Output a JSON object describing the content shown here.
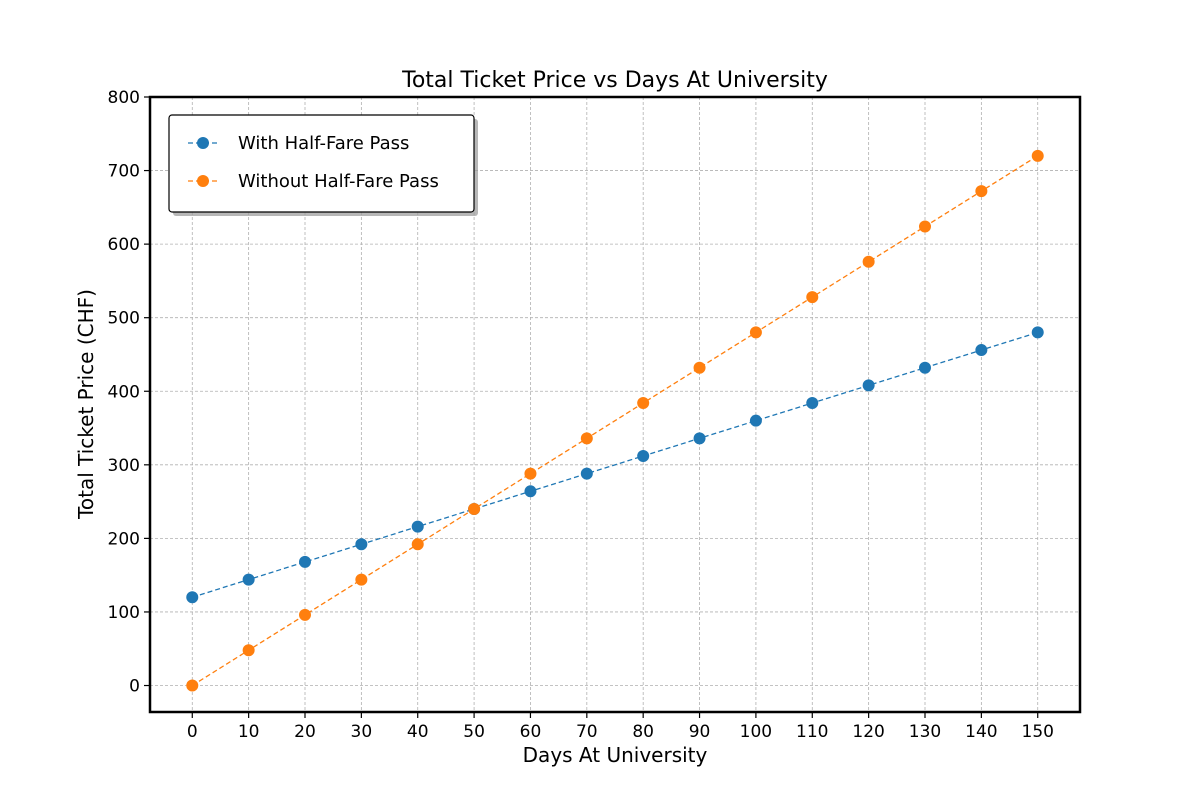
{
  "chart_data": {
    "type": "line",
    "title": "Total Ticket Price vs Days At University",
    "xlabel": "Days At University",
    "ylabel": "Total Ticket Price (CHF)",
    "xlim": [
      -7.5,
      157.5
    ],
    "ylim": [
      -36,
      800
    ],
    "x_ticks": [
      "0",
      "10",
      "20",
      "30",
      "40",
      "50",
      "60",
      "70",
      "80",
      "90",
      "100",
      "110",
      "120",
      "130",
      "140",
      "150"
    ],
    "y_ticks": [
      "0",
      "100",
      "200",
      "300",
      "400",
      "500",
      "600",
      "700",
      "800"
    ],
    "grid": true,
    "legend_position": "upper-left",
    "x": [
      0,
      10,
      20,
      30,
      40,
      50,
      60,
      70,
      80,
      90,
      100,
      110,
      120,
      130,
      140,
      150
    ],
    "series": [
      {
        "name": "With Half-Fare Pass",
        "color": "#1f77b4",
        "values": [
          120,
          144,
          168,
          192,
          216,
          240,
          264,
          288,
          312,
          336,
          360,
          384,
          408,
          432,
          456,
          480
        ]
      },
      {
        "name": "Without Half-Fare Pass",
        "color": "#ff7f0e",
        "values": [
          0,
          48,
          96,
          144,
          192,
          240,
          288,
          336,
          384,
          432,
          480,
          528,
          576,
          624,
          672,
          720
        ]
      }
    ]
  }
}
